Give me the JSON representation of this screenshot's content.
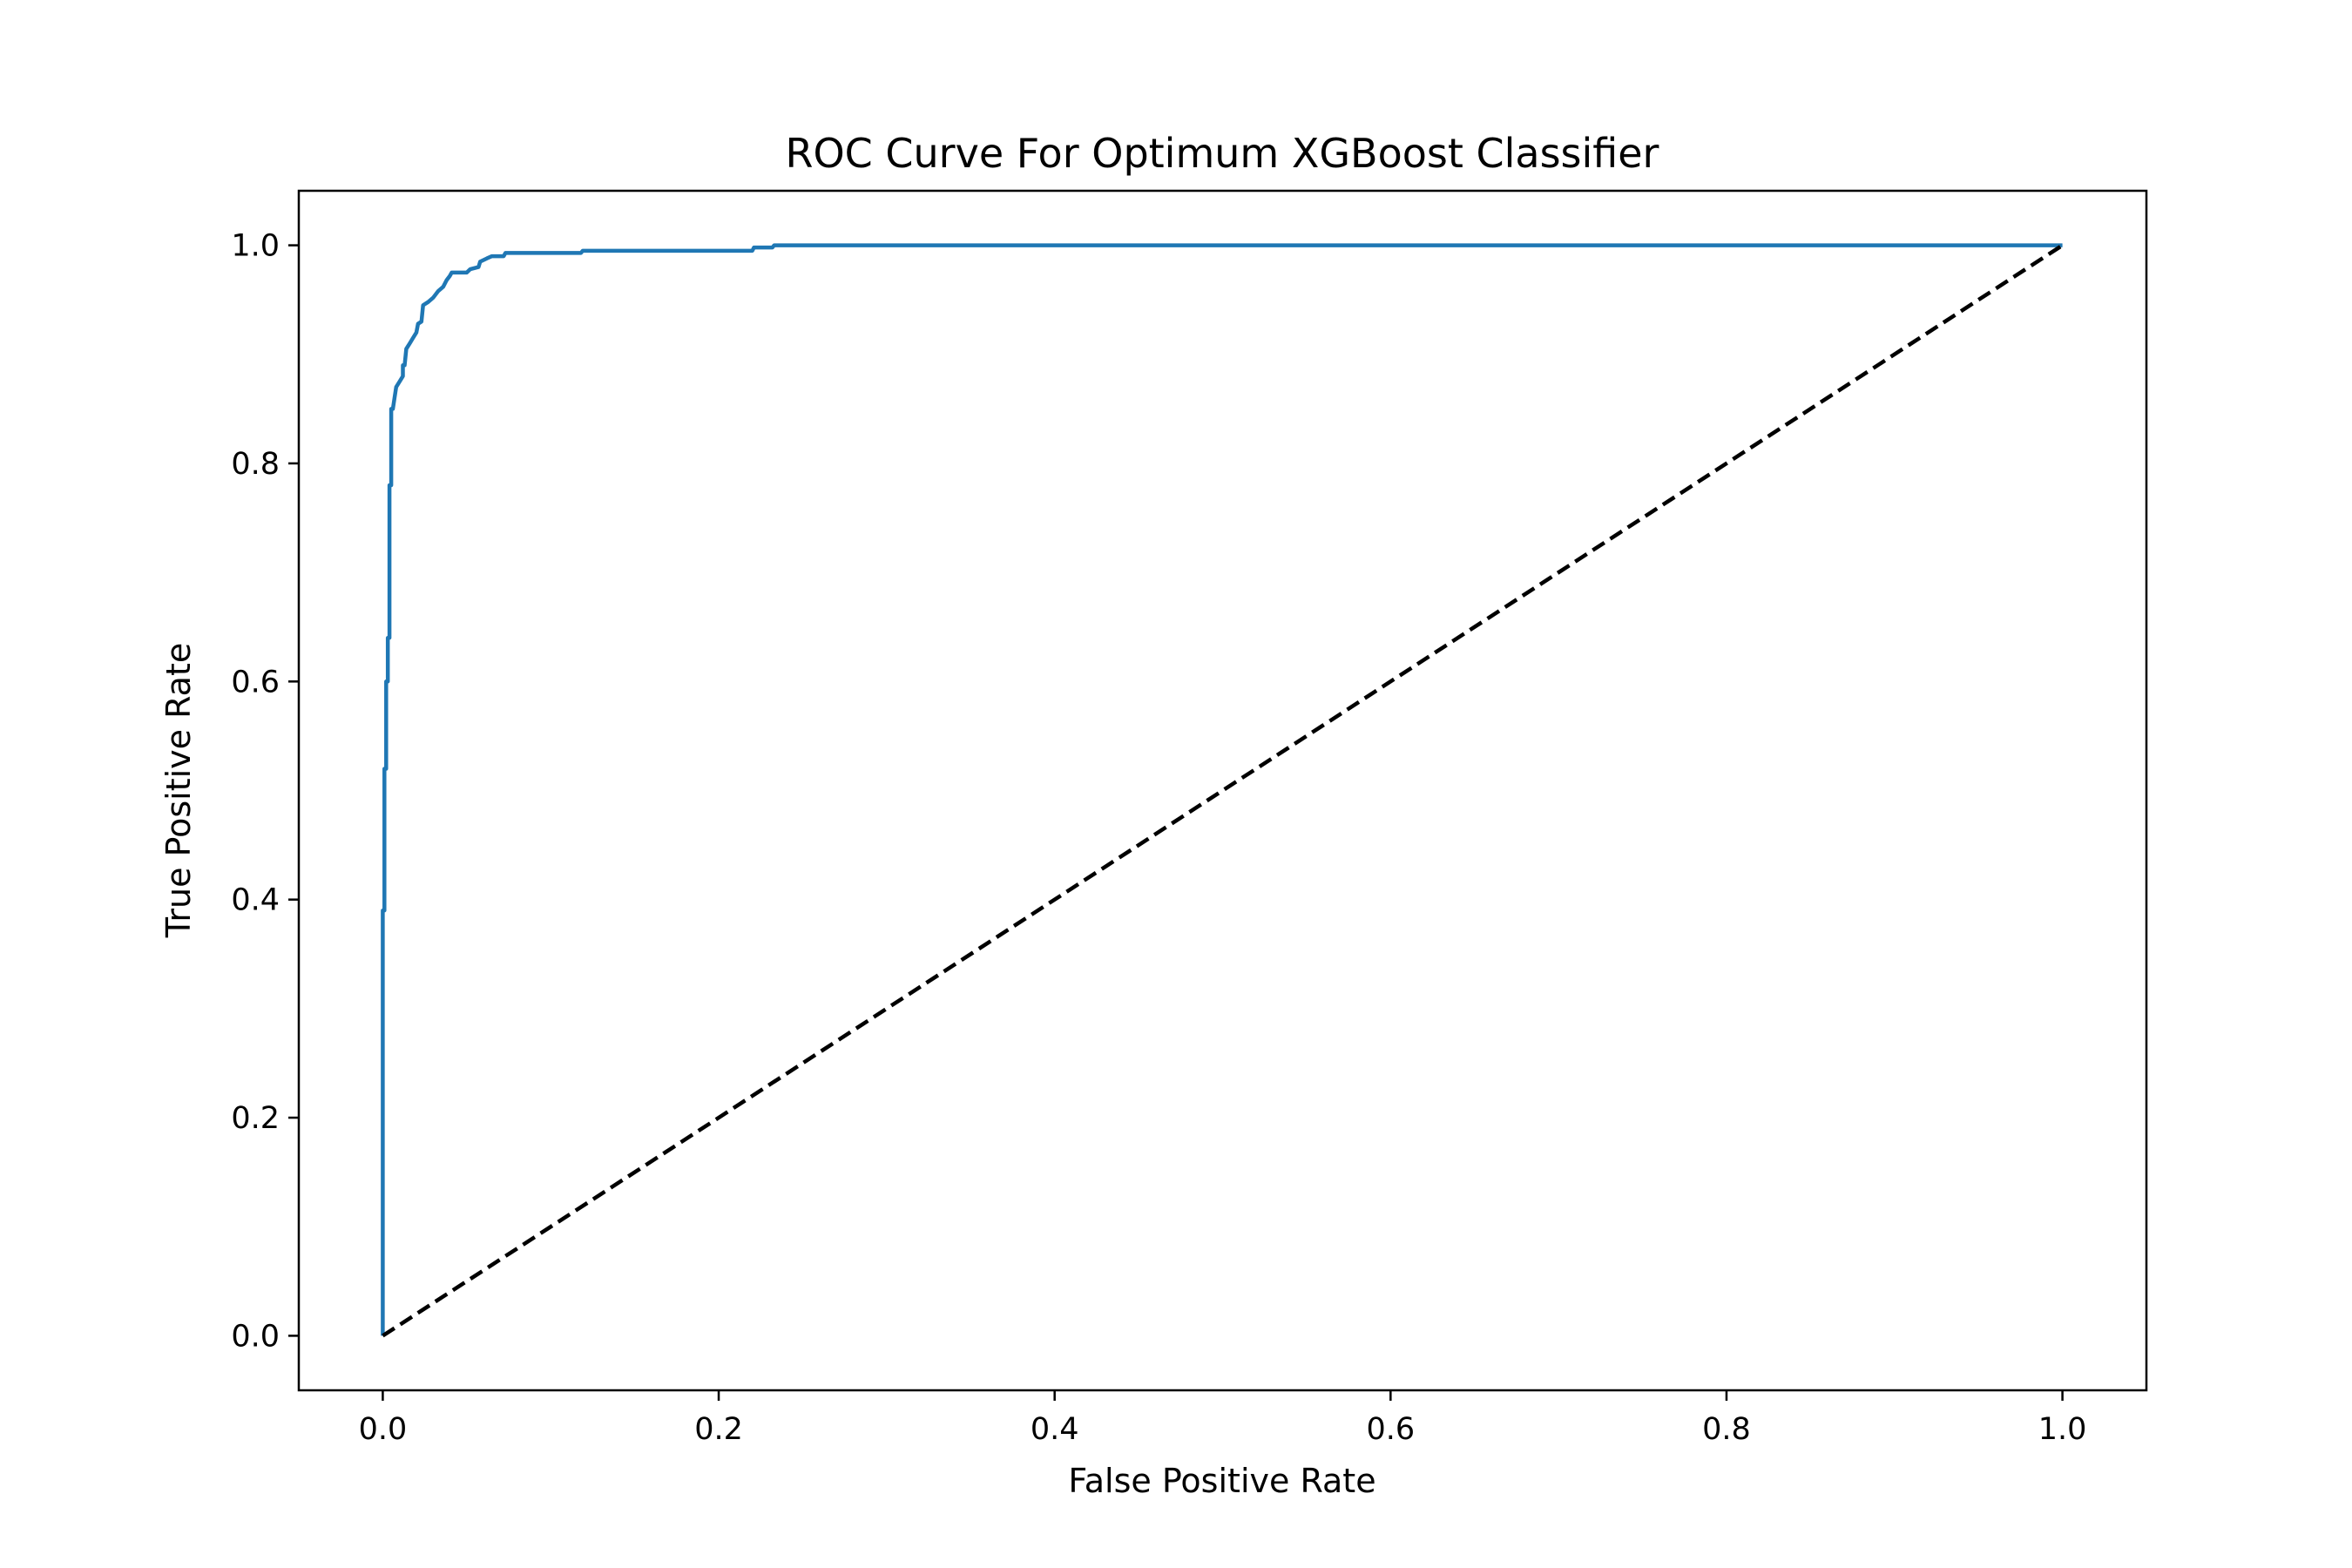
{
  "chart_data": {
    "type": "line",
    "title": "ROC Curve For Optimum XGBoost Classifier",
    "xlabel": "False Positive Rate",
    "ylabel": "True Positive Rate",
    "xlim": [
      -0.05,
      1.05
    ],
    "ylim": [
      -0.05,
      1.05
    ],
    "xticks": [
      0.0,
      0.2,
      0.4,
      0.6,
      0.8,
      1.0
    ],
    "yticks": [
      0.0,
      0.2,
      0.4,
      0.6,
      0.8,
      1.0
    ],
    "xtick_labels": [
      "0.0",
      "0.2",
      "0.4",
      "0.6",
      "0.8",
      "1.0"
    ],
    "ytick_labels": [
      "0.0",
      "0.2",
      "0.4",
      "0.6",
      "0.8",
      "1.0"
    ],
    "grid": false,
    "legend": "none",
    "series": [
      {
        "style": "solid",
        "color": "#1f77b4",
        "points": [
          [
            0.0,
            0.0
          ],
          [
            0.0,
            0.39
          ],
          [
            0.001,
            0.39
          ],
          [
            0.001,
            0.52
          ],
          [
            0.002,
            0.52
          ],
          [
            0.002,
            0.6
          ],
          [
            0.003,
            0.6
          ],
          [
            0.003,
            0.64
          ],
          [
            0.004,
            0.64
          ],
          [
            0.004,
            0.78
          ],
          [
            0.005,
            0.78
          ],
          [
            0.005,
            0.85
          ],
          [
            0.006,
            0.85
          ],
          [
            0.007,
            0.86
          ],
          [
            0.008,
            0.87
          ],
          [
            0.01,
            0.875
          ],
          [
            0.012,
            0.88
          ],
          [
            0.012,
            0.89
          ],
          [
            0.013,
            0.89
          ],
          [
            0.014,
            0.905
          ],
          [
            0.016,
            0.91
          ],
          [
            0.018,
            0.915
          ],
          [
            0.02,
            0.92
          ],
          [
            0.021,
            0.928
          ],
          [
            0.023,
            0.93
          ],
          [
            0.024,
            0.945
          ],
          [
            0.027,
            0.948
          ],
          [
            0.03,
            0.952
          ],
          [
            0.033,
            0.958
          ],
          [
            0.036,
            0.962
          ],
          [
            0.038,
            0.968
          ],
          [
            0.04,
            0.972
          ],
          [
            0.041,
            0.975
          ],
          [
            0.05,
            0.975
          ],
          [
            0.052,
            0.978
          ],
          [
            0.057,
            0.98
          ],
          [
            0.058,
            0.985
          ],
          [
            0.062,
            0.988
          ],
          [
            0.065,
            0.99
          ],
          [
            0.072,
            0.99
          ],
          [
            0.073,
            0.993
          ],
          [
            0.118,
            0.993
          ],
          [
            0.119,
            0.995
          ],
          [
            0.22,
            0.995
          ],
          [
            0.221,
            0.998
          ],
          [
            0.232,
            0.998
          ],
          [
            0.233,
            1.0
          ],
          [
            1.0,
            1.0
          ]
        ]
      },
      {
        "style": "dashed",
        "color": "#000000",
        "points": [
          [
            0.0,
            0.0
          ],
          [
            1.0,
            1.0
          ]
        ]
      }
    ]
  }
}
